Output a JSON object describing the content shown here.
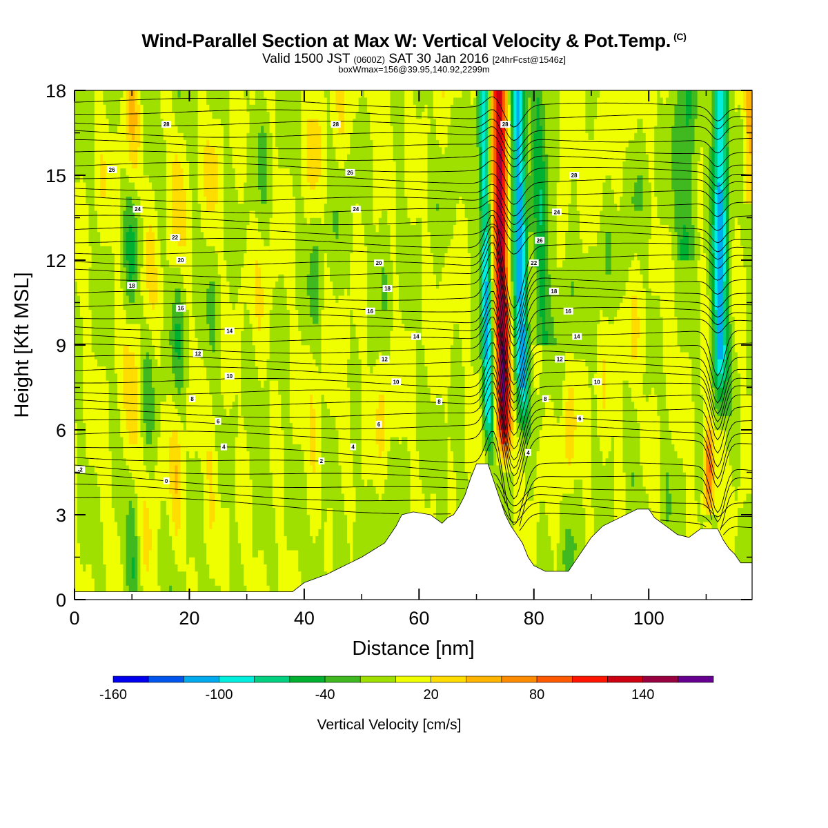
{
  "title": {
    "main": "Wind-Parallel Section at Max W: Vertical Velocity & Pot.Temp.",
    "copyright": "(C)",
    "valid_prefix": "Valid 1500 JST",
    "valid_utc": "(0600Z)",
    "valid_date": "SAT 30 Jan 2016",
    "forecast": "[24hrFcst@1546z]",
    "box_info": "boxWmax=156@39.95,140.92,2299m"
  },
  "chart_data": {
    "type": "heatmap",
    "xlabel": "Distance [nm]",
    "ylabel": "Height [Kft MSL]",
    "xlim": [
      0,
      118
    ],
    "ylim": [
      0,
      18
    ],
    "x_ticks": [
      0,
      20,
      40,
      60,
      80,
      100
    ],
    "y_ticks": [
      0,
      3,
      6,
      9,
      12,
      15,
      18
    ],
    "colorbar": {
      "label": "Vertical Velocity [cm/s]",
      "range": [
        -160,
        180
      ],
      "step": 20,
      "tick_labels": [
        -160,
        -100,
        -40,
        20,
        80,
        140
      ],
      "colors": [
        "#0000ee",
        "#0055ee",
        "#00aaee",
        "#00eedd",
        "#00d080",
        "#00b030",
        "#40b820",
        "#a0e000",
        "#f0ff00",
        "#ffdd00",
        "#ffb400",
        "#ff8c00",
        "#ff5a00",
        "#ff1400",
        "#cc0010",
        "#990040",
        "#660090"
      ]
    },
    "terrain_kft": [
      [
        0,
        0.28
      ],
      [
        38,
        0.28
      ],
      [
        40,
        0.6
      ],
      [
        44,
        0.9
      ],
      [
        46,
        1.1
      ],
      [
        48,
        1.3
      ],
      [
        50,
        1.5
      ],
      [
        54,
        2.0
      ],
      [
        56,
        2.6
      ],
      [
        57,
        3.0
      ],
      [
        59,
        3.1
      ],
      [
        62,
        3.0
      ],
      [
        64,
        2.7
      ],
      [
        65,
        2.9
      ],
      [
        66,
        3.0
      ],
      [
        67,
        3.3
      ],
      [
        68,
        3.7
      ],
      [
        69,
        4.3
      ],
      [
        70,
        4.8
      ],
      [
        72,
        4.8
      ],
      [
        73,
        4.2
      ],
      [
        74,
        3.6
      ],
      [
        75,
        3.0
      ],
      [
        76,
        2.6
      ],
      [
        77,
        2.3
      ],
      [
        78,
        2.0
      ],
      [
        79,
        1.5
      ],
      [
        80,
        1.2
      ],
      [
        82,
        1.0
      ],
      [
        86,
        1.0
      ],
      [
        87,
        1.3
      ],
      [
        88,
        1.6
      ],
      [
        89,
        1.9
      ],
      [
        90,
        2.2
      ],
      [
        92,
        2.6
      ],
      [
        94,
        2.8
      ],
      [
        96,
        3.0
      ],
      [
        98,
        3.2
      ],
      [
        100,
        3.2
      ],
      [
        101,
        2.9
      ],
      [
        103,
        2.6
      ],
      [
        105,
        2.3
      ],
      [
        107,
        2.2
      ],
      [
        109,
        2.5
      ],
      [
        112,
        2.5
      ],
      [
        113,
        2.1
      ],
      [
        114,
        1.8
      ],
      [
        115,
        1.6
      ],
      [
        116,
        1.3
      ],
      [
        118,
        1.3
      ]
    ],
    "updraft_cores": [
      {
        "x": 75,
        "peak_w": 156
      },
      {
        "x": 110.5,
        "peak_w": 100
      }
    ],
    "downdraft_cores": [
      {
        "x": 72.5,
        "peak_w": -90
      },
      {
        "x": 78,
        "peak_w": -110
      },
      {
        "x": 112.5,
        "peak_w": -110
      }
    ],
    "isentrope_labels": [
      {
        "text": "-2",
        "x": 1,
        "y": 4.6
      },
      {
        "text": "0",
        "x": 16,
        "y": 4.2
      },
      {
        "text": "2",
        "x": 43,
        "y": 4.9
      },
      {
        "text": "4",
        "x": 26,
        "y": 5.4
      },
      {
        "text": "4",
        "x": 48.5,
        "y": 5.4
      },
      {
        "text": "4",
        "x": 79,
        "y": 5.2
      },
      {
        "text": "6",
        "x": 25,
        "y": 6.3
      },
      {
        "text": "6",
        "x": 53,
        "y": 6.2
      },
      {
        "text": "6",
        "x": 88,
        "y": 6.4
      },
      {
        "text": "8",
        "x": 20.5,
        "y": 7.1
      },
      {
        "text": "8",
        "x": 63.5,
        "y": 7.0
      },
      {
        "text": "8",
        "x": 82,
        "y": 7.1
      },
      {
        "text": "10",
        "x": 27,
        "y": 7.9
      },
      {
        "text": "10",
        "x": 56,
        "y": 7.7
      },
      {
        "text": "10",
        "x": 91,
        "y": 7.7
      },
      {
        "text": "12",
        "x": 21.5,
        "y": 8.7
      },
      {
        "text": "12",
        "x": 54,
        "y": 8.5
      },
      {
        "text": "12",
        "x": 84.5,
        "y": 8.5
      },
      {
        "text": "14",
        "x": 27,
        "y": 9.5
      },
      {
        "text": "14",
        "x": 59.5,
        "y": 9.3
      },
      {
        "text": "14",
        "x": 87.5,
        "y": 9.3
      },
      {
        "text": "16",
        "x": 18.5,
        "y": 10.3
      },
      {
        "text": "16",
        "x": 51.5,
        "y": 10.2
      },
      {
        "text": "16",
        "x": 86,
        "y": 10.2
      },
      {
        "text": "18",
        "x": 10,
        "y": 11.1
      },
      {
        "text": "18",
        "x": 54.5,
        "y": 11.0
      },
      {
        "text": "18",
        "x": 83.5,
        "y": 10.9
      },
      {
        "text": "20",
        "x": 18.5,
        "y": 12.0
      },
      {
        "text": "20",
        "x": 53,
        "y": 11.9
      },
      {
        "text": "22",
        "x": 17.5,
        "y": 12.8
      },
      {
        "text": "22",
        "x": 80,
        "y": 11.9
      },
      {
        "text": "24",
        "x": 11,
        "y": 13.8
      },
      {
        "text": "24",
        "x": 49,
        "y": 13.8
      },
      {
        "text": "24",
        "x": 84,
        "y": 13.7
      },
      {
        "text": "26",
        "x": 6.5,
        "y": 15.2
      },
      {
        "text": "26",
        "x": 48,
        "y": 15.1
      },
      {
        "text": "26",
        "x": 81,
        "y": 12.7
      },
      {
        "text": "28",
        "x": 16,
        "y": 16.8
      },
      {
        "text": "28",
        "x": 45.5,
        "y": 16.8
      },
      {
        "text": "28",
        "x": 87,
        "y": 15.0
      },
      {
        "text": "28",
        "x": 75,
        "y": 16.8
      }
    ]
  }
}
